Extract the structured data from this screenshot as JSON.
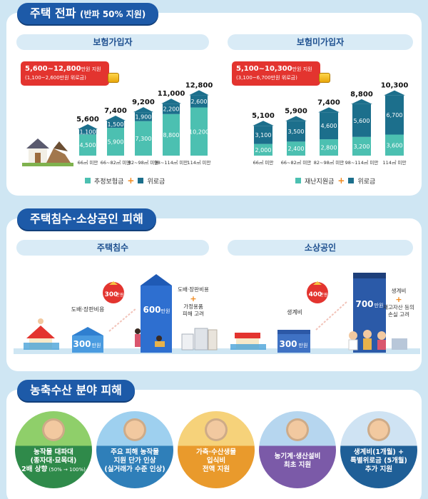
{
  "section1": {
    "title": "주택 전파",
    "title_sub": "(반파 50% 지원)",
    "insured": {
      "header": "보험가입자",
      "range": "5,600~12,800",
      "range_unit": "만원 지원",
      "range_sub": "(1,100~2,600만원 위로금)"
    },
    "uninsured": {
      "header": "보험미가입자",
      "range": "5,100~10,300",
      "range_unit": "만원 지원",
      "range_sub": "(3,100~6,700만원 위로금)"
    }
  },
  "chart_data": [
    {
      "type": "bar",
      "stacked": true,
      "categories": [
        "66㎡ 미만",
        "66~82㎡ 미만",
        "82~98㎡ 미만",
        "98~114㎡ 미만",
        "114㎡ 미만"
      ],
      "series": [
        {
          "name": "추정보험금",
          "values": [
            4500,
            5900,
            7300,
            8800,
            10200
          ],
          "color": "#4cc0b1"
        },
        {
          "name": "위로금",
          "values": [
            1100,
            1500,
            1900,
            2200,
            2600
          ],
          "color": "#1c6f8c"
        }
      ],
      "totals": [
        5600,
        7400,
        9200,
        11000,
        12800
      ],
      "ylim": [
        0,
        13000
      ]
    },
    {
      "type": "bar",
      "stacked": true,
      "categories": [
        "66㎡ 미만",
        "66~82㎡ 미만",
        "82~98㎡ 미만",
        "98~114㎡ 미만",
        "114㎡ 미만"
      ],
      "series": [
        {
          "name": "재난지원금",
          "values": [
            2000,
            2400,
            2800,
            3200,
            3600
          ],
          "color": "#4cc0b1"
        },
        {
          "name": "위로금",
          "values": [
            3100,
            3500,
            4600,
            5600,
            6700
          ],
          "color": "#1c6f8c"
        }
      ],
      "totals": [
        5100,
        5900,
        7400,
        8800,
        10300
      ],
      "ylim": [
        0,
        10500
      ]
    }
  ],
  "section2": {
    "title": "주택침수·소상공인 피해",
    "flooded": {
      "header": "주택침수",
      "base": "300",
      "base_unit": "만원",
      "base_label": "도배·장판비용",
      "plus": "300",
      "plus_unit": "만원",
      "total": "600",
      "total_unit": "만원",
      "note1": "도배·장판비용",
      "note2": "가정용품\n피해 고려"
    },
    "small_biz": {
      "header": "소상공인",
      "base": "300",
      "base_unit": "만원",
      "base_label": "생계비",
      "plus": "400",
      "plus_unit": "만원",
      "total": "700",
      "total_unit": "만원",
      "note1": "생계비",
      "note2": "재고자산 등의\n손실 고려"
    }
  },
  "section3": {
    "title": "농축수산 분야 피해",
    "items": [
      {
        "line1": "농작물 대파대",
        "line2": "(종자대·묘목대)",
        "line3": "2배 상향",
        "line3_sub": "(50% → 100%)",
        "color": "#2f8a4a"
      },
      {
        "line1": "주요 피해 농작물",
        "line2": "지원 단가 인상",
        "line3": "(실거래가 수준 인상)",
        "color": "#2f7fb9"
      },
      {
        "line1": "가축·수산생물",
        "line2": "입식비",
        "line3": "전액 지원",
        "color": "#e99a2c"
      },
      {
        "line1": "농기계·생산설비",
        "line2": "최초 지원",
        "color": "#7b5aa8"
      },
      {
        "line1": "생계비(1개월) +",
        "line2": "특별위로금 (5개월)",
        "line3": "추가 지원",
        "color": "#1f5f97"
      }
    ]
  }
}
